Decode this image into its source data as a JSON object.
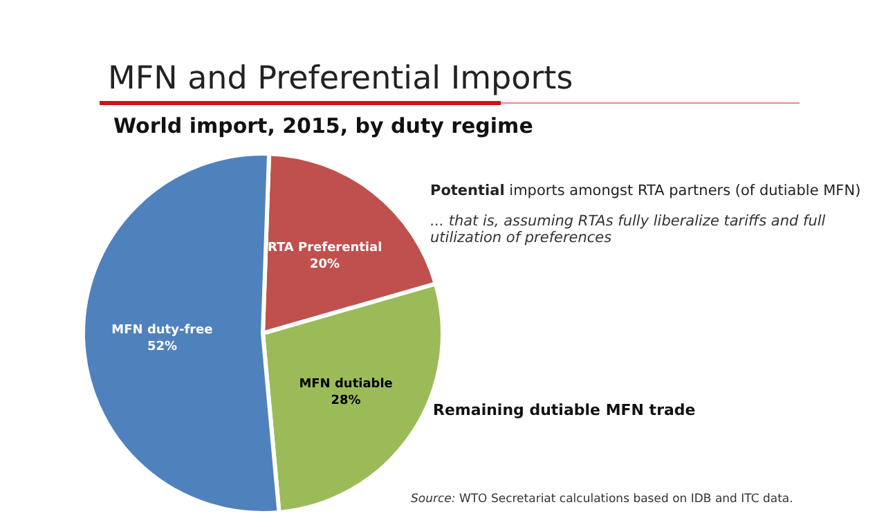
{
  "chart_data": {
    "type": "pie",
    "title": "MFN and Preferential Imports",
    "subtitle": "World import, 2015, by duty regime",
    "categories": [
      "RTA Preferential",
      "MFN dutiable",
      "MFN duty-free"
    ],
    "values": [
      20,
      28,
      52
    ],
    "colors": [
      "#c0504d",
      "#9bbb59",
      "#4f81bd"
    ],
    "value_labels": [
      "20%",
      "28%",
      "52%"
    ],
    "legend": false,
    "annotations": [
      "Potential imports amongst RTA partners (of dutiable MFN)",
      "... that is, assuming RTAs fully liberalize tariffs and full utilization of preferences",
      "Remaining dutiable MFN trade",
      "Source: WTO Secretariat calculations based on IDB and ITC data."
    ]
  }
}
